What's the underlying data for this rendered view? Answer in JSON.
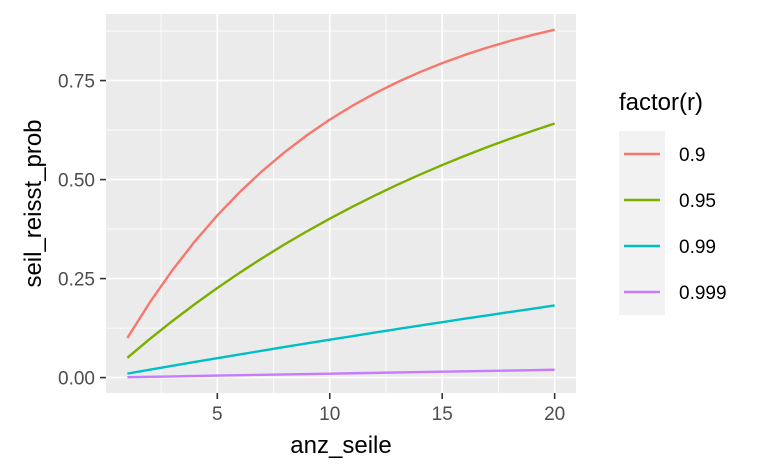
{
  "chart_data": {
    "type": "line",
    "xlabel": "anz_seile",
    "ylabel": "seil_reisst_prob",
    "xlim": [
      0.05,
      20.95
    ],
    "ylim": [
      -0.0389,
      0.9181
    ],
    "x_ticks": [
      5,
      10,
      15,
      20
    ],
    "x_tick_labels": [
      "5",
      "10",
      "15",
      "20"
    ],
    "y_ticks": [
      0,
      0.25,
      0.5,
      0.75
    ],
    "y_tick_labels": [
      "0.00",
      "0.25",
      "0.50",
      "0.75"
    ],
    "grid": true,
    "legend": {
      "title": "factor(r)",
      "placement": "right"
    },
    "x": [
      1,
      2,
      3,
      4,
      5,
      6,
      7,
      8,
      9,
      10,
      11,
      12,
      13,
      14,
      15,
      16,
      17,
      18,
      19,
      20
    ],
    "series": [
      {
        "name": "0.9",
        "color": "#F8766D",
        "values": [
          0.1,
          0.19,
          0.271,
          0.3439,
          0.4095,
          0.4686,
          0.5217,
          0.5695,
          0.6126,
          0.6513,
          0.6862,
          0.7176,
          0.7458,
          0.7712,
          0.7941,
          0.8147,
          0.8332,
          0.8499,
          0.8649,
          0.8784
        ]
      },
      {
        "name": "0.95",
        "color": "#7CAE00",
        "values": [
          0.05,
          0.0975,
          0.1426,
          0.1855,
          0.2262,
          0.2649,
          0.3017,
          0.3366,
          0.3698,
          0.4013,
          0.4312,
          0.4596,
          0.4867,
          0.5123,
          0.5367,
          0.5599,
          0.5819,
          0.6028,
          0.6226,
          0.6415
        ]
      },
      {
        "name": "0.99",
        "color": "#00BFC4",
        "values": [
          0.01,
          0.0199,
          0.0297,
          0.0394,
          0.049,
          0.0585,
          0.0679,
          0.0773,
          0.0865,
          0.0956,
          0.1047,
          0.1136,
          0.1225,
          0.1313,
          0.14,
          0.1486,
          0.1571,
          0.1655,
          0.1738,
          0.1821
        ]
      },
      {
        "name": "0.999",
        "color": "#C77CFF",
        "values": [
          0.001,
          0.002,
          0.003,
          0.004,
          0.005,
          0.006,
          0.007,
          0.008,
          0.009,
          0.00996,
          0.01095,
          0.01193,
          0.01292,
          0.0139,
          0.01489,
          0.01587,
          0.01686,
          0.01784,
          0.01883,
          0.01981
        ]
      }
    ]
  }
}
